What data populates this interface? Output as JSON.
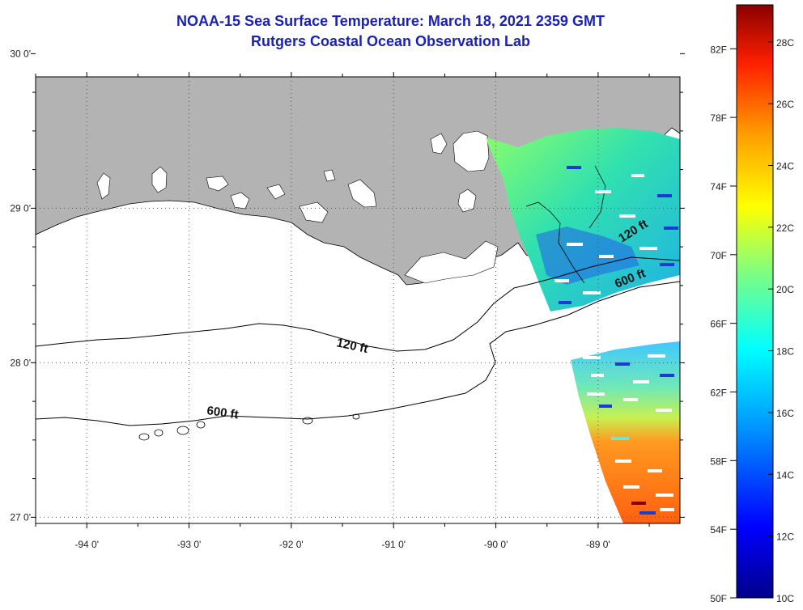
{
  "header": {
    "title": "NOAA-15 Sea Surface Temperature:  March 18, 2021 2359 GMT",
    "subtitle": "Rutgers Coastal Ocean Observation Lab"
  },
  "map": {
    "lon_range": [
      -94.5,
      -88.2
    ],
    "lat_range": [
      26.96,
      29.85
    ],
    "lat_ticks": [
      {
        "value": 30,
        "label": "30 0'"
      },
      {
        "value": 29,
        "label": "29 0'"
      },
      {
        "value": 28,
        "label": "28 0'"
      },
      {
        "value": 27,
        "label": "27 0'"
      }
    ],
    "lon_ticks": [
      {
        "value": -94,
        "label": "-94 0'"
      },
      {
        "value": -93,
        "label": "-93 0'"
      },
      {
        "value": -92,
        "label": "-92 0'"
      },
      {
        "value": -91,
        "label": "-91 0'"
      },
      {
        "value": -90,
        "label": "-90 0'"
      },
      {
        "value": -89,
        "label": "-89 0'"
      }
    ],
    "grid": "dotted",
    "land_color": "#b3b3b3",
    "contour_labels": {
      "c120_left": "120 ft",
      "c600_left": "600 ft",
      "c120_right": "120 ft",
      "c600_right": "600 ft"
    }
  },
  "colorbar": {
    "fahrenheit_labels": [
      "82F",
      "78F",
      "74F",
      "70F",
      "66F",
      "62F",
      "58F",
      "54F",
      "50F"
    ],
    "celsius_labels": [
      "28C",
      "26C",
      "24C",
      "22C",
      "20C",
      "18C",
      "16C",
      "14C",
      "12C",
      "10C"
    ],
    "range_c": [
      10,
      29.2
    ],
    "colors": [
      "#00008b",
      "#0000ff",
      "#00a0ff",
      "#00ffff",
      "#7fff7f",
      "#ffff00",
      "#ff9f00",
      "#ff2000",
      "#8b0000"
    ]
  }
}
